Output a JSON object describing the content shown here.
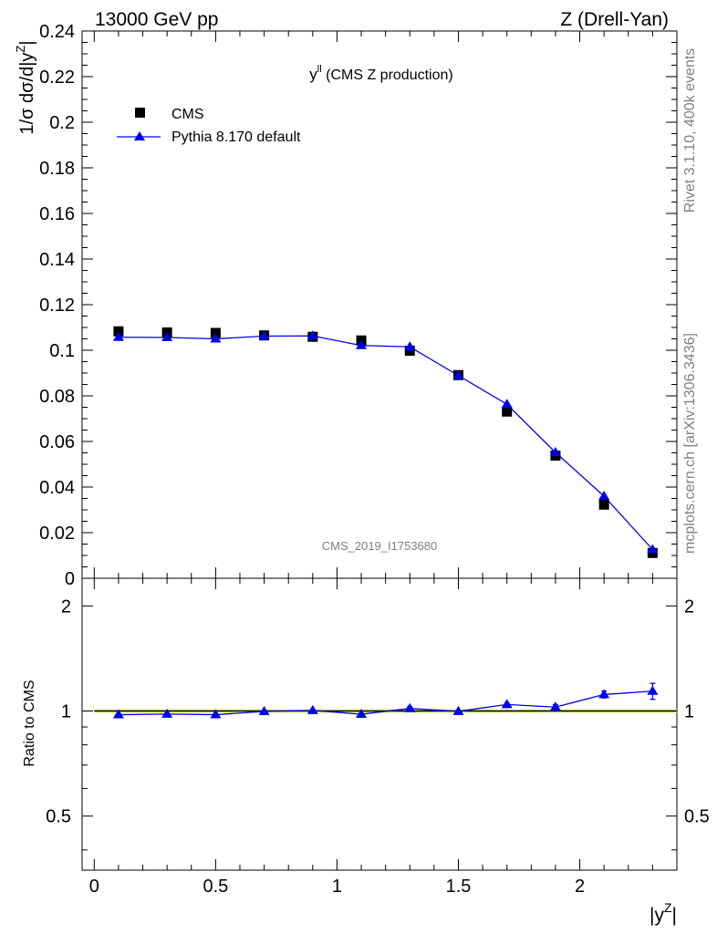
{
  "header": {
    "left": "13000 GeV pp",
    "right": "Z (Drell-Yan)"
  },
  "side": {
    "rivet": "Rivet 3.1.10,  400k events",
    "mcplots": "mcplots.cern.ch [arXiv:1306.3436]"
  },
  "plot": {
    "title_main": "y",
    "title_sup": "ll",
    "title_rest": " (CMS Z production)",
    "analysis": "CMS_2019_I1753680",
    "ylabel_main": "1/σ dσ/d|y",
    "ylabel_sup": "Z",
    "ylabel_end": "|",
    "ratio_ylabel": "Ratio to CMS",
    "xlabel_main": "|y",
    "xlabel_sup": "Z",
    "xlabel_end": "|",
    "legend": {
      "data": "CMS",
      "mc": "Pythia 8.170 default"
    }
  },
  "colors": {
    "data": "#000000",
    "mc": "#0000ee",
    "band": "#e6f57a",
    "text_gray": "#7f7f7f"
  },
  "chart_data": [
    {
      "type": "scatter",
      "panel": "main",
      "xlim": [
        -0.05,
        2.4
      ],
      "ylim": [
        0,
        0.24
      ],
      "x_ticks": [
        "0",
        "0.5",
        "1",
        "1.5",
        "2"
      ],
      "y_ticks": [
        "0",
        "0.02",
        "0.04",
        "0.06",
        "0.08",
        "0.1",
        "0.12",
        "0.14",
        "0.16",
        "0.18",
        "0.2",
        "0.22",
        "0.24"
      ],
      "series": [
        {
          "name": "CMS",
          "x": [
            0.1,
            0.3,
            0.5,
            0.7,
            0.9,
            1.1,
            1.3,
            1.5,
            1.7,
            1.9,
            2.1,
            2.3
          ],
          "y": [
            0.1083,
            0.1078,
            0.1076,
            0.1065,
            0.1059,
            0.1043,
            0.0998,
            0.0891,
            0.0731,
            0.0538,
            0.0323,
            0.0111
          ]
        },
        {
          "name": "Pythia 8.170 default",
          "x": [
            0.1,
            0.3,
            0.5,
            0.7,
            0.9,
            1.1,
            1.3,
            1.5,
            1.7,
            1.9,
            2.1,
            2.3
          ],
          "y": [
            0.1057,
            0.1056,
            0.105,
            0.1062,
            0.1063,
            0.1021,
            0.1015,
            0.0889,
            0.0763,
            0.0552,
            0.036,
            0.0126
          ],
          "err": [
            0.0005,
            0.0005,
            0.0005,
            0.0005,
            0.0005,
            0.0006,
            0.0012,
            0.0006,
            0.0008,
            0.0009,
            0.0008,
            0.0008
          ]
        }
      ]
    },
    {
      "type": "line",
      "panel": "ratio",
      "xlim": [
        -0.05,
        2.4
      ],
      "ylim": [
        0.35,
        2.4
      ],
      "y_ticks": [
        "0.5",
        "1",
        "2"
      ],
      "series": [
        {
          "name": "Pythia 8.170 default",
          "x": [
            0.1,
            0.3,
            0.5,
            0.7,
            0.9,
            1.1,
            1.3,
            1.5,
            1.7,
            1.9,
            2.1,
            2.3
          ],
          "y": [
            0.976,
            0.98,
            0.976,
            0.997,
            1.004,
            0.979,
            1.017,
            0.998,
            1.044,
            1.026,
            1.115,
            1.14
          ],
          "err": [
            0.004,
            0.004,
            0.004,
            0.004,
            0.004,
            0.006,
            0.012,
            0.006,
            0.01,
            0.017,
            0.025,
            0.06
          ]
        }
      ]
    }
  ]
}
